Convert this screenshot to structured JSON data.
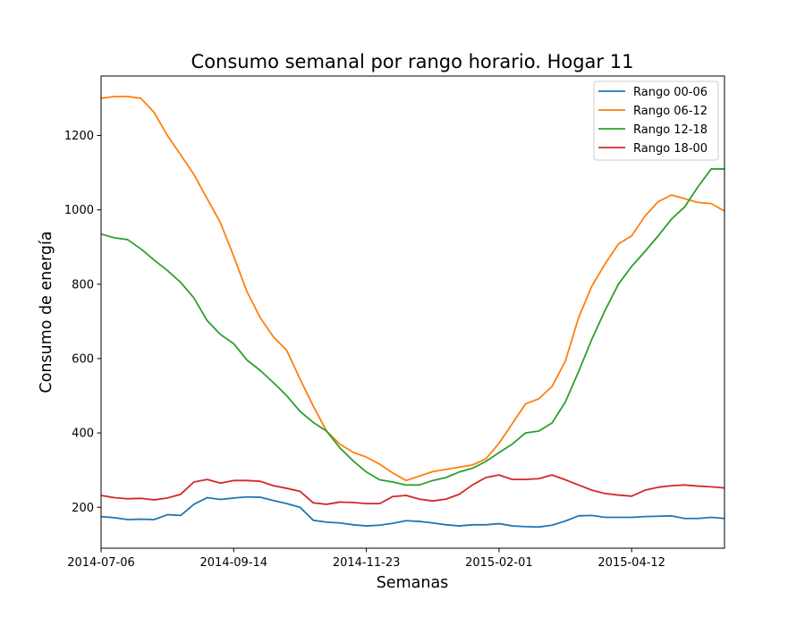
{
  "chart_data": {
    "type": "line",
    "title": "Consumo semanal por rango horario. Hogar 11",
    "xlabel": "Semanas",
    "ylabel": "Consumo de energía",
    "x_start": "2014-07-06",
    "x_end": "2015-05-31",
    "x_ticks": [
      "2014-07-06",
      "2014-09-14",
      "2014-11-23",
      "2015-02-01",
      "2015-04-12"
    ],
    "ylim": [
      90,
      1360
    ],
    "y_ticks": [
      200,
      400,
      600,
      800,
      1000,
      1200
    ],
    "grid": false,
    "legend_position": "top-right",
    "x": [
      "2014-07-06",
      "2014-07-13",
      "2014-07-20",
      "2014-07-27",
      "2014-08-03",
      "2014-08-10",
      "2014-08-17",
      "2014-08-24",
      "2014-08-31",
      "2014-09-07",
      "2014-09-14",
      "2014-09-21",
      "2014-09-28",
      "2014-10-05",
      "2014-10-12",
      "2014-10-19",
      "2014-10-26",
      "2014-11-02",
      "2014-11-09",
      "2014-11-16",
      "2014-11-23",
      "2014-11-30",
      "2014-12-07",
      "2014-12-14",
      "2014-12-21",
      "2014-12-28",
      "2015-01-04",
      "2015-01-11",
      "2015-01-18",
      "2015-01-25",
      "2015-02-01",
      "2015-02-08",
      "2015-02-15",
      "2015-02-22",
      "2015-03-01",
      "2015-03-08",
      "2015-03-15",
      "2015-03-22",
      "2015-03-29",
      "2015-04-05",
      "2015-04-12",
      "2015-04-19",
      "2015-04-26",
      "2015-05-03",
      "2015-05-10",
      "2015-05-17",
      "2015-05-24",
      "2015-05-31"
    ],
    "series": [
      {
        "name": "Rango 00-06",
        "color": "#1f77b4",
        "values": [
          175,
          172,
          167,
          168,
          167,
          180,
          178,
          208,
          226,
          221,
          225,
          228,
          227,
          218,
          210,
          200,
          165,
          160,
          158,
          153,
          150,
          152,
          157,
          164,
          162,
          158,
          153,
          150,
          153,
          153,
          156,
          150,
          148,
          147,
          152,
          163,
          177,
          178,
          173,
          173,
          173,
          175,
          176,
          177,
          170,
          170,
          173,
          170
        ]
      },
      {
        "name": "Rango 06-12",
        "color": "#ff7f0e",
        "values": [
          1300,
          1305,
          1305,
          1300,
          1262,
          1200,
          1148,
          1095,
          1030,
          965,
          875,
          780,
          710,
          658,
          622,
          545,
          472,
          405,
          370,
          348,
          335,
          316,
          292,
          272,
          284,
          296,
          302,
          308,
          314,
          330,
          372,
          425,
          478,
          492,
          525,
          593,
          710,
          795,
          855,
          908,
          930,
          983,
          1022,
          1040,
          1030,
          1020,
          1017,
          997
        ]
      },
      {
        "name": "Rango 12-18",
        "color": "#2ca02c",
        "values": [
          935,
          925,
          920,
          895,
          865,
          837,
          805,
          763,
          702,
          665,
          640,
          596,
          568,
          535,
          500,
          458,
          428,
          405,
          360,
          325,
          295,
          274,
          268,
          260,
          260,
          272,
          280,
          295,
          305,
          323,
          347,
          370,
          400,
          405,
          427,
          483,
          565,
          652,
          730,
          800,
          848,
          888,
          930,
          975,
          1008,
          1062,
          1110,
          1110
        ]
      },
      {
        "name": "Rango 18-00",
        "color": "#d62728",
        "values": [
          232,
          226,
          223,
          224,
          220,
          225,
          235,
          268,
          275,
          265,
          272,
          272,
          270,
          258,
          251,
          243,
          212,
          208,
          214,
          213,
          210,
          210,
          229,
          232,
          222,
          217,
          222,
          235,
          260,
          280,
          287,
          275,
          275,
          277,
          287,
          274,
          260,
          246,
          237,
          233,
          230,
          246,
          254,
          258,
          260,
          257,
          255,
          252
        ]
      }
    ]
  }
}
